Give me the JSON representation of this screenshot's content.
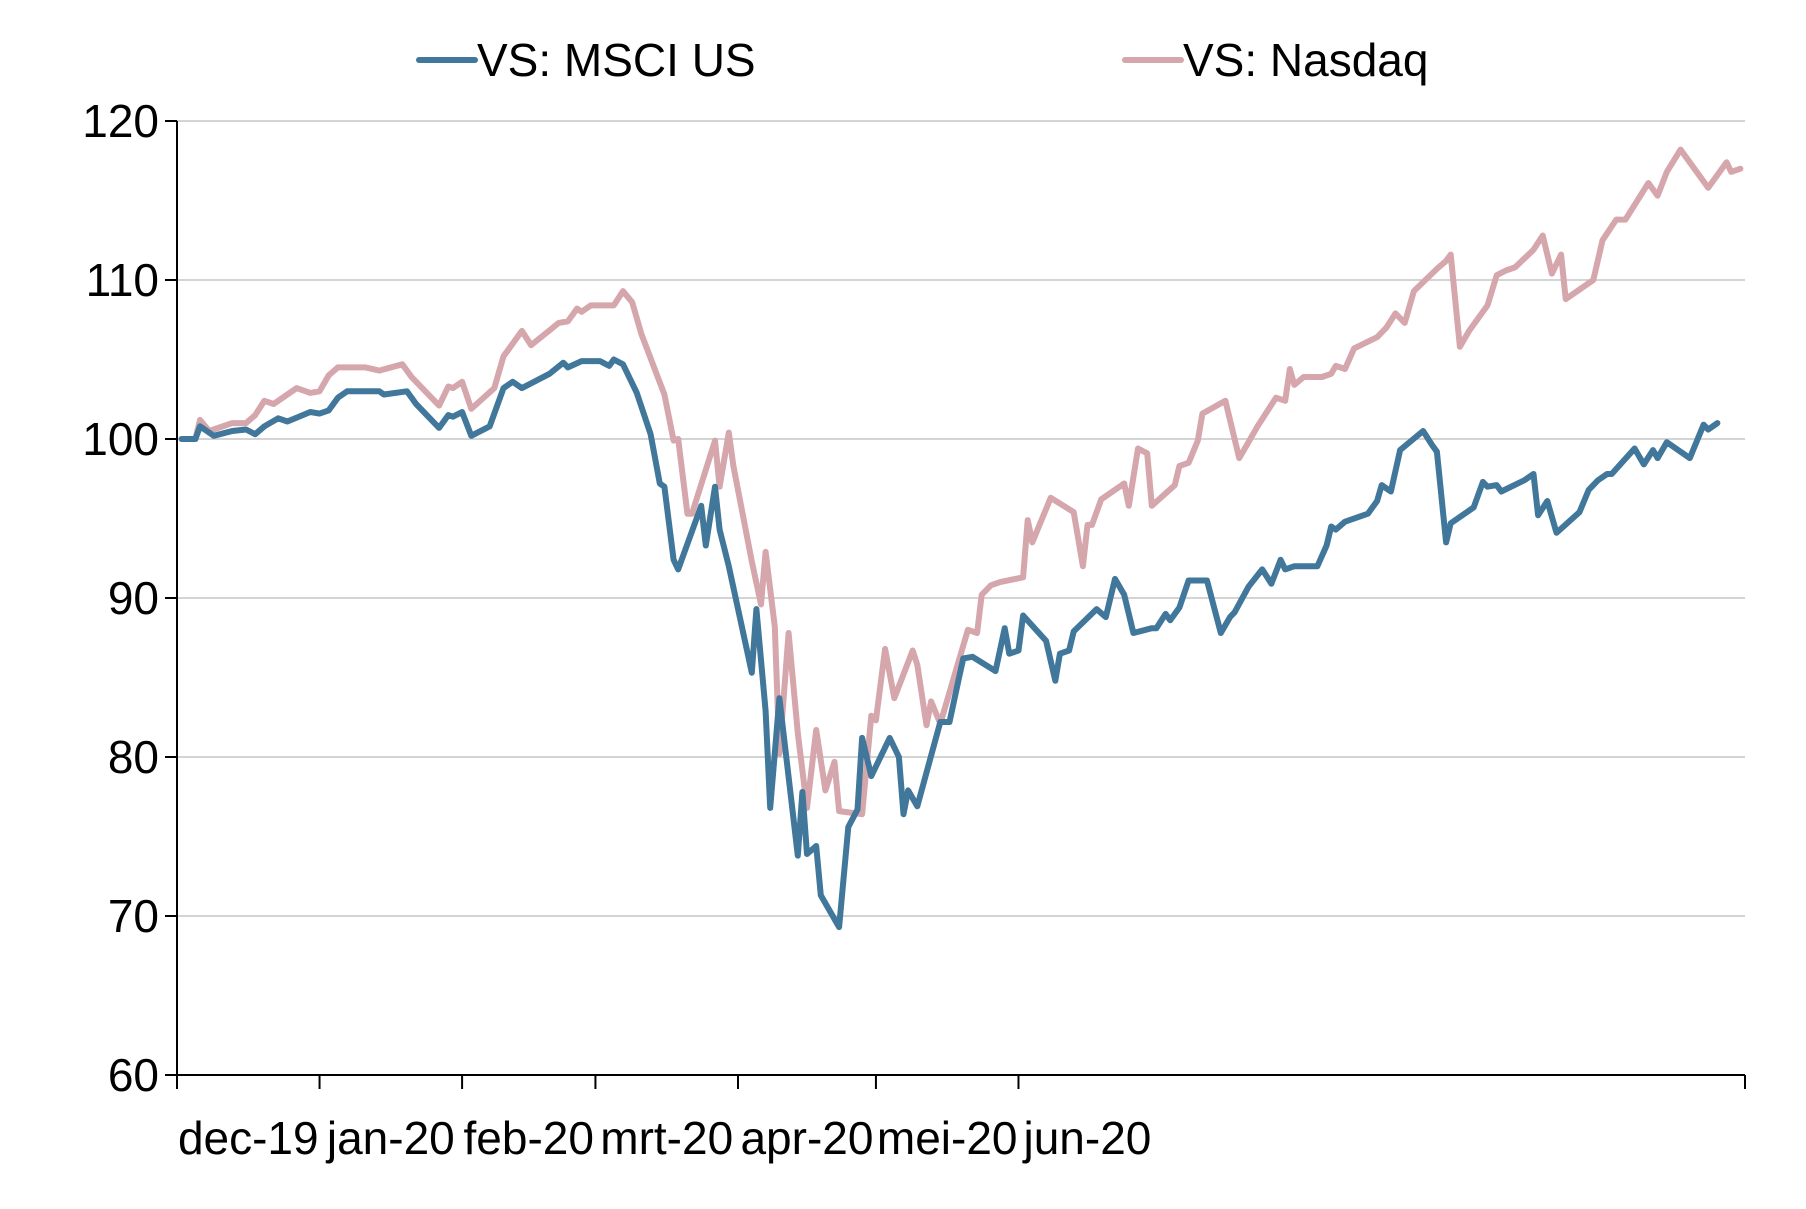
{
  "chart_data": {
    "type": "line",
    "title": "",
    "xlabel": "",
    "ylabel": "",
    "x_ticks": [
      "dec-19",
      "jan-20",
      "feb-20",
      "mrt-20",
      "apr-20",
      "mei-20",
      "jun-20"
    ],
    "y_ticks": [
      "60",
      "70",
      "80",
      "90",
      "100",
      "110",
      "120"
    ],
    "ylim": [
      60,
      120
    ],
    "grid": "horizontal",
    "legend": "top",
    "series": [
      {
        "name": "VS: MSCI US",
        "color": "#41779a",
        "points": [
          [
            "2019-12-02",
            100.0
          ],
          [
            "2019-12-05",
            100.0
          ],
          [
            "2019-12-06",
            100.8
          ],
          [
            "2019-12-09",
            100.2
          ],
          [
            "2019-12-13",
            100.5
          ],
          [
            "2019-12-16",
            100.6
          ],
          [
            "2019-12-18",
            100.3
          ],
          [
            "2019-12-20",
            100.8
          ],
          [
            "2019-12-23",
            101.3
          ],
          [
            "2019-12-25",
            101.1
          ],
          [
            "2019-12-30",
            101.7
          ],
          [
            "2020-01-01",
            101.6
          ],
          [
            "2020-01-03",
            101.8
          ],
          [
            "2020-01-05",
            102.6
          ],
          [
            "2020-01-07",
            103.0
          ],
          [
            "2020-01-11",
            103.0
          ],
          [
            "2020-01-14",
            103.0
          ],
          [
            "2020-01-15",
            102.8
          ],
          [
            "2020-01-20",
            103.0
          ],
          [
            "2020-01-22",
            102.2
          ],
          [
            "2020-01-27",
            100.7
          ],
          [
            "2020-01-29",
            101.5
          ],
          [
            "2020-01-30",
            101.4
          ],
          [
            "2020-02-01",
            101.7
          ],
          [
            "2020-02-03",
            100.2
          ],
          [
            "2020-02-07",
            100.8
          ],
          [
            "2020-02-10",
            103.2
          ],
          [
            "2020-02-12",
            103.6
          ],
          [
            "2020-02-14",
            103.2
          ],
          [
            "2020-02-20",
            104.1
          ],
          [
            "2020-02-23",
            104.8
          ],
          [
            "2020-02-24",
            104.5
          ],
          [
            "2020-02-27",
            104.9
          ],
          [
            "2020-03-02",
            104.9
          ],
          [
            "2020-03-04",
            104.6
          ],
          [
            "2020-03-05",
            105.0
          ],
          [
            "2020-03-07",
            104.7
          ],
          [
            "2020-03-10",
            102.9
          ],
          [
            "2020-03-13",
            100.3
          ],
          [
            "2020-03-15",
            97.2
          ],
          [
            "2020-03-16",
            97.0
          ],
          [
            "2020-03-18",
            92.4
          ],
          [
            "2020-03-19",
            91.8
          ],
          [
            "2020-03-24",
            95.8
          ],
          [
            "2020-03-25",
            93.3
          ],
          [
            "2020-03-27",
            97.0
          ],
          [
            "2020-03-28",
            94.3
          ],
          [
            "2020-03-30",
            92.0
          ],
          [
            "2020-04-04",
            85.3
          ],
          [
            "2020-04-05",
            89.3
          ],
          [
            "2020-04-07",
            82.9
          ],
          [
            "2020-04-08",
            76.8
          ],
          [
            "2020-04-10",
            83.7
          ],
          [
            "2020-04-14",
            73.8
          ],
          [
            "2020-04-15",
            77.8
          ],
          [
            "2020-04-16",
            73.9
          ],
          [
            "2020-04-18",
            74.4
          ],
          [
            "2020-04-19",
            71.3
          ],
          [
            "2020-04-23",
            69.3
          ],
          [
            "2020-04-25",
            75.6
          ],
          [
            "2020-04-27",
            76.7
          ],
          [
            "2020-04-28",
            81.2
          ],
          [
            "2020-04-30",
            78.8
          ],
          [
            "2020-05-04",
            81.2
          ],
          [
            "2020-05-06",
            80.0
          ],
          [
            "2020-05-07",
            76.4
          ],
          [
            "2020-05-08",
            77.9
          ],
          [
            "2020-05-10",
            76.9
          ],
          [
            "2020-05-15",
            82.2
          ],
          [
            "2020-05-17",
            82.2
          ],
          [
            "2020-05-19",
            84.9
          ],
          [
            "2020-05-20",
            86.2
          ],
          [
            "2020-05-22",
            86.3
          ],
          [
            "2020-05-27",
            85.4
          ],
          [
            "2020-05-29",
            88.1
          ],
          [
            "2020-05-30",
            86.5
          ],
          [
            "2020-06-01",
            86.7
          ],
          [
            "2020-06-02",
            88.9
          ],
          [
            "2020-06-07",
            87.3
          ],
          [
            "2020-06-09",
            84.8
          ],
          [
            "2020-06-10",
            86.5
          ],
          [
            "2020-06-12",
            86.7
          ],
          [
            "2020-06-13",
            87.9
          ],
          [
            "2020-06-18",
            89.3
          ],
          [
            "2020-06-20",
            88.8
          ],
          [
            "2020-06-22",
            91.2
          ],
          [
            "2020-06-24",
            90.2
          ],
          [
            "2020-06-26",
            87.8
          ],
          [
            "2020-06-30",
            88.1
          ],
          [
            "2020-07-01",
            88.1
          ],
          [
            "2020-07-03",
            89.0
          ],
          [
            "2020-07-04",
            88.6
          ],
          [
            "2020-07-06",
            89.4
          ],
          [
            "2020-07-08",
            91.1
          ],
          [
            "2020-07-12",
            91.1
          ],
          [
            "2020-07-15",
            87.8
          ],
          [
            "2020-07-17",
            88.8
          ],
          [
            "2020-07-18",
            89.1
          ],
          [
            "2020-07-21",
            90.7
          ],
          [
            "2020-07-24",
            91.8
          ],
          [
            "2020-07-26",
            90.9
          ],
          [
            "2020-07-28",
            92.4
          ],
          [
            "2020-07-29",
            91.8
          ],
          [
            "2020-07-31",
            92.0
          ],
          [
            "2020-08-05",
            92.0
          ],
          [
            "2020-08-07",
            93.3
          ],
          [
            "2020-08-08",
            94.5
          ],
          [
            "2020-08-09",
            94.3
          ],
          [
            "2020-08-11",
            94.8
          ],
          [
            "2020-08-16",
            95.3
          ],
          [
            "2020-08-18",
            96.1
          ],
          [
            "2020-08-19",
            97.1
          ],
          [
            "2020-08-21",
            96.7
          ],
          [
            "2020-08-23",
            99.3
          ],
          [
            "2020-08-28",
            100.5
          ],
          [
            "2020-08-30",
            99.6
          ],
          [
            "2020-08-31",
            99.2
          ],
          [
            "2020-09-02",
            93.5
          ],
          [
            "2020-09-03",
            94.7
          ],
          [
            "2020-09-08",
            95.7
          ],
          [
            "2020-09-10",
            97.3
          ],
          [
            "2020-09-11",
            97.0
          ],
          [
            "2020-09-13",
            97.1
          ],
          [
            "2020-09-14",
            96.7
          ],
          [
            "2020-09-19",
            97.4
          ],
          [
            "2020-09-21",
            97.8
          ],
          [
            "2020-09-22",
            95.2
          ],
          [
            "2020-09-24",
            96.1
          ],
          [
            "2020-09-26",
            94.1
          ],
          [
            "2020-10-01",
            95.4
          ],
          [
            "2020-10-03",
            96.8
          ],
          [
            "2020-10-05",
            97.4
          ],
          [
            "2020-10-07",
            97.8
          ],
          [
            "2020-10-08",
            97.8
          ],
          [
            "2020-10-13",
            99.4
          ],
          [
            "2020-10-15",
            98.4
          ],
          [
            "2020-10-17",
            99.3
          ],
          [
            "2020-10-18",
            98.8
          ],
          [
            "2020-10-20",
            99.8
          ],
          [
            "2020-10-25",
            98.8
          ],
          [
            "2020-10-28",
            100.9
          ],
          [
            "2020-10-29",
            100.6
          ],
          [
            "2020-10-31",
            101.0
          ]
        ]
      },
      {
        "name": "VS: Nasdaq",
        "color": "#d5a6ac",
        "points": [
          [
            "2019-12-02",
            100.0
          ],
          [
            "2019-12-05",
            100.0
          ],
          [
            "2019-12-06",
            101.2
          ],
          [
            "2019-12-08",
            100.5
          ],
          [
            "2019-12-13",
            101.0
          ],
          [
            "2019-12-16",
            101.0
          ],
          [
            "2019-12-18",
            101.5
          ],
          [
            "2019-12-20",
            102.4
          ],
          [
            "2019-12-22",
            102.2
          ],
          [
            "2019-12-27",
            103.2
          ],
          [
            "2019-12-30",
            102.9
          ],
          [
            "2020-01-01",
            103.0
          ],
          [
            "2020-01-03",
            104.0
          ],
          [
            "2020-01-05",
            104.5
          ],
          [
            "2020-01-11",
            104.5
          ],
          [
            "2020-01-14",
            104.3
          ],
          [
            "2020-01-19",
            104.7
          ],
          [
            "2020-01-21",
            103.9
          ],
          [
            "2020-01-27",
            102.1
          ],
          [
            "2020-01-29",
            103.3
          ],
          [
            "2020-01-30",
            103.2
          ],
          [
            "2020-02-01",
            103.6
          ],
          [
            "2020-02-03",
            101.9
          ],
          [
            "2020-02-08",
            103.2
          ],
          [
            "2020-02-10",
            105.2
          ],
          [
            "2020-02-14",
            106.8
          ],
          [
            "2020-02-16",
            105.9
          ],
          [
            "2020-02-22",
            107.3
          ],
          [
            "2020-02-24",
            107.4
          ],
          [
            "2020-02-26",
            108.2
          ],
          [
            "2020-02-27",
            108.0
          ],
          [
            "2020-02-29",
            108.4
          ],
          [
            "2020-03-05",
            108.4
          ],
          [
            "2020-03-07",
            109.3
          ],
          [
            "2020-03-09",
            108.6
          ],
          [
            "2020-03-11",
            106.6
          ],
          [
            "2020-03-16",
            102.8
          ],
          [
            "2020-03-18",
            99.9
          ],
          [
            "2020-03-19",
            100.0
          ],
          [
            "2020-03-21",
            95.3
          ],
          [
            "2020-03-22",
            95.3
          ],
          [
            "2020-03-27",
            99.9
          ],
          [
            "2020-03-28",
            97.0
          ],
          [
            "2020-03-30",
            100.4
          ],
          [
            "2020-03-31",
            98.3
          ],
          [
            "2020-04-04",
            92.3
          ],
          [
            "2020-04-06",
            89.6
          ],
          [
            "2020-04-07",
            92.9
          ],
          [
            "2020-04-09",
            88.2
          ],
          [
            "2020-04-10",
            80.2
          ],
          [
            "2020-04-12",
            87.8
          ],
          [
            "2020-04-14",
            81.5
          ],
          [
            "2020-04-16",
            76.8
          ],
          [
            "2020-04-18",
            81.7
          ],
          [
            "2020-04-20",
            77.9
          ],
          [
            "2020-04-22",
            79.7
          ],
          [
            "2020-04-23",
            76.6
          ],
          [
            "2020-04-28",
            76.4
          ],
          [
            "2020-04-30",
            82.6
          ],
          [
            "2020-05-01",
            82.3
          ],
          [
            "2020-05-03",
            86.8
          ],
          [
            "2020-05-05",
            83.7
          ],
          [
            "2020-05-09",
            86.7
          ],
          [
            "2020-05-10",
            85.8
          ],
          [
            "2020-05-12",
            82.0
          ],
          [
            "2020-05-13",
            83.5
          ],
          [
            "2020-05-15",
            82.1
          ],
          [
            "2020-05-21",
            88.0
          ],
          [
            "2020-05-23",
            87.8
          ],
          [
            "2020-05-24",
            90.2
          ],
          [
            "2020-05-26",
            90.8
          ],
          [
            "2020-05-28",
            91.0
          ],
          [
            "2020-06-02",
            91.3
          ],
          [
            "2020-06-03",
            94.9
          ],
          [
            "2020-06-04",
            93.5
          ],
          [
            "2020-06-08",
            96.3
          ],
          [
            "2020-06-13",
            95.4
          ],
          [
            "2020-06-15",
            92.0
          ],
          [
            "2020-06-16",
            94.6
          ],
          [
            "2020-06-17",
            94.6
          ],
          [
            "2020-06-19",
            96.2
          ],
          [
            "2020-06-24",
            97.2
          ],
          [
            "2020-06-25",
            95.8
          ],
          [
            "2020-06-27",
            99.4
          ],
          [
            "2020-06-29",
            99.1
          ],
          [
            "2020-06-30",
            95.8
          ],
          [
            "2020-07-05",
            97.1
          ],
          [
            "2020-07-06",
            98.3
          ],
          [
            "2020-07-08",
            98.5
          ],
          [
            "2020-07-10",
            99.9
          ],
          [
            "2020-07-11",
            101.6
          ],
          [
            "2020-07-16",
            102.4
          ],
          [
            "2020-07-19",
            98.8
          ],
          [
            "2020-07-21",
            99.8
          ],
          [
            "2020-07-23",
            100.8
          ],
          [
            "2020-07-27",
            102.6
          ],
          [
            "2020-07-29",
            102.4
          ],
          [
            "2020-07-30",
            104.4
          ],
          [
            "2020-07-31",
            103.4
          ],
          [
            "2020-08-02",
            103.9
          ],
          [
            "2020-08-06",
            103.9
          ],
          [
            "2020-08-08",
            104.1
          ],
          [
            "2020-08-09",
            104.6
          ],
          [
            "2020-08-11",
            104.4
          ],
          [
            "2020-08-13",
            105.7
          ],
          [
            "2020-08-18",
            106.4
          ],
          [
            "2020-08-20",
            107.0
          ],
          [
            "2020-08-22",
            107.9
          ],
          [
            "2020-08-24",
            107.3
          ],
          [
            "2020-08-26",
            109.3
          ],
          [
            "2020-08-31",
            110.7
          ],
          [
            "2020-09-02",
            111.2
          ],
          [
            "2020-09-03",
            111.6
          ],
          [
            "2020-09-05",
            105.8
          ],
          [
            "2020-09-07",
            106.8
          ],
          [
            "2020-09-11",
            108.4
          ],
          [
            "2020-09-13",
            110.3
          ],
          [
            "2020-09-15",
            110.6
          ],
          [
            "2020-09-17",
            110.8
          ],
          [
            "2020-09-21",
            111.9
          ],
          [
            "2020-09-23",
            112.8
          ],
          [
            "2020-09-25",
            110.4
          ],
          [
            "2020-09-27",
            111.6
          ],
          [
            "2020-09-28",
            108.8
          ],
          [
            "2020-10-04",
            110.0
          ],
          [
            "2020-10-06",
            112.5
          ],
          [
            "2020-10-09",
            113.8
          ],
          [
            "2020-10-11",
            113.8
          ],
          [
            "2020-10-16",
            116.1
          ],
          [
            "2020-10-18",
            115.3
          ],
          [
            "2020-10-20",
            116.8
          ],
          [
            "2020-10-23",
            118.2
          ],
          [
            "2020-10-26",
            117.0
          ],
          [
            "2020-10-29",
            115.8
          ],
          [
            "2020-11-02",
            117.4
          ],
          [
            "2020-11-03",
            116.8
          ],
          [
            "2020-11-05",
            117.0
          ]
        ]
      }
    ]
  }
}
